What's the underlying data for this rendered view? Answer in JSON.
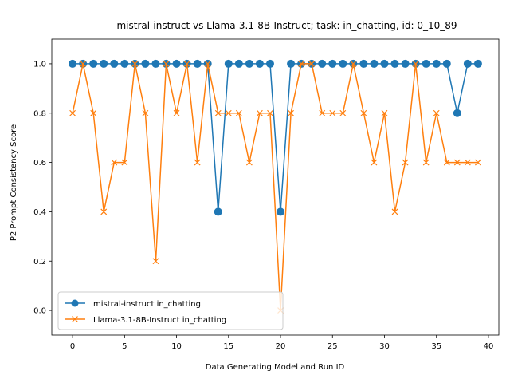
{
  "chart_data": {
    "type": "line",
    "title": "mistral-instruct vs Llama-3.1-8B-Instruct; task: in_chatting, id: 0_10_89",
    "xlabel": "Data Generating Model and Run ID",
    "ylabel": "P2 Prompt Consistency Score",
    "xlim": [
      -2,
      41
    ],
    "ylim": [
      -0.1,
      1.1
    ],
    "x_ticks": [
      0,
      5,
      10,
      15,
      20,
      25,
      30,
      35,
      40
    ],
    "y_ticks": [
      0.0,
      0.2,
      0.4,
      0.6,
      0.8,
      1.0
    ],
    "x_tick_labels": [
      "0",
      "5",
      "10",
      "15",
      "20",
      "25",
      "30",
      "35",
      "40"
    ],
    "y_tick_labels": [
      "0.0",
      "0.2",
      "0.4",
      "0.6",
      "0.8",
      "1.0"
    ],
    "grid": false,
    "legend_position": "lower-left",
    "x": [
      0,
      1,
      2,
      3,
      4,
      5,
      6,
      7,
      8,
      9,
      10,
      11,
      12,
      13,
      14,
      15,
      16,
      17,
      18,
      19,
      20,
      21,
      22,
      23,
      24,
      25,
      26,
      27,
      28,
      29,
      30,
      31,
      32,
      33,
      34,
      35,
      36,
      37,
      38,
      39
    ],
    "series": [
      {
        "name": "mistral-instruct in_chatting",
        "color": "#1f77b4",
        "marker": "circle",
        "values": [
          1.0,
          1.0,
          1.0,
          1.0,
          1.0,
          1.0,
          1.0,
          1.0,
          1.0,
          1.0,
          1.0,
          1.0,
          1.0,
          1.0,
          0.4,
          1.0,
          1.0,
          1.0,
          1.0,
          1.0,
          0.4,
          1.0,
          1.0,
          1.0,
          1.0,
          1.0,
          1.0,
          1.0,
          1.0,
          1.0,
          1.0,
          1.0,
          1.0,
          1.0,
          1.0,
          1.0,
          1.0,
          0.8,
          1.0,
          1.0
        ]
      },
      {
        "name": "Llama-3.1-8B-Instruct in_chatting",
        "color": "#ff7f0e",
        "marker": "x",
        "values": [
          0.8,
          1.0,
          0.8,
          0.4,
          0.6,
          0.6,
          1.0,
          0.8,
          0.2,
          1.0,
          0.8,
          1.0,
          0.6,
          1.0,
          0.8,
          0.8,
          0.8,
          0.6,
          0.8,
          0.8,
          0.0,
          0.8,
          1.0,
          1.0,
          0.8,
          0.8,
          0.8,
          1.0,
          0.8,
          0.6,
          0.8,
          0.4,
          0.6,
          1.0,
          0.6,
          0.8,
          0.6,
          0.6,
          0.6,
          0.6
        ]
      }
    ]
  }
}
